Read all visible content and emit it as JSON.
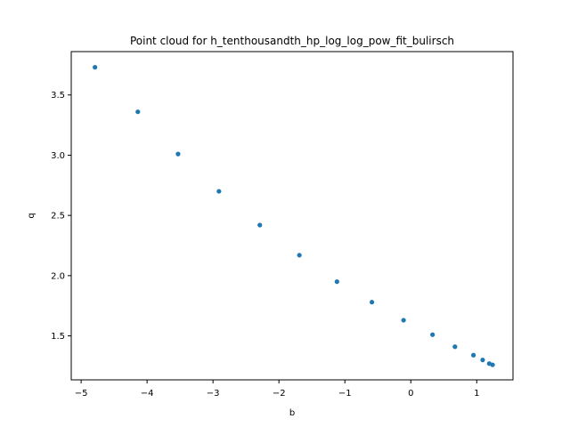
{
  "chart_data": {
    "type": "scatter",
    "title": "Point cloud for h_tenthousandth_hp_log_log_pow_fit_bulirsch",
    "xlabel": "b",
    "ylabel": "q",
    "xlim": [
      -5.15,
      1.55
    ],
    "ylim": [
      1.135,
      3.86
    ],
    "xticks": [
      -5,
      -4,
      -3,
      -2,
      -1,
      0,
      1
    ],
    "xtick_labels": [
      "−5",
      "−4",
      "−3",
      "−2",
      "−1",
      "0",
      "1"
    ],
    "yticks": [
      1.5,
      2.0,
      2.5,
      3.0,
      3.5
    ],
    "ytick_labels": [
      "1.5",
      "2.0",
      "2.5",
      "3.0",
      "3.5"
    ],
    "grid": false,
    "legend": "none",
    "marker_color": "#1f77b4",
    "series": [
      {
        "x": [
          -4.79,
          -4.14,
          -3.53,
          -2.91,
          -2.29,
          -1.69,
          -1.12,
          -0.59,
          -0.11,
          0.33,
          0.67,
          0.95,
          1.09,
          1.19,
          1.24
        ],
        "y": [
          3.73,
          3.36,
          3.01,
          2.7,
          2.42,
          2.17,
          1.95,
          1.78,
          1.63,
          1.51,
          1.41,
          1.34,
          1.3,
          1.27,
          1.26
        ]
      }
    ]
  }
}
